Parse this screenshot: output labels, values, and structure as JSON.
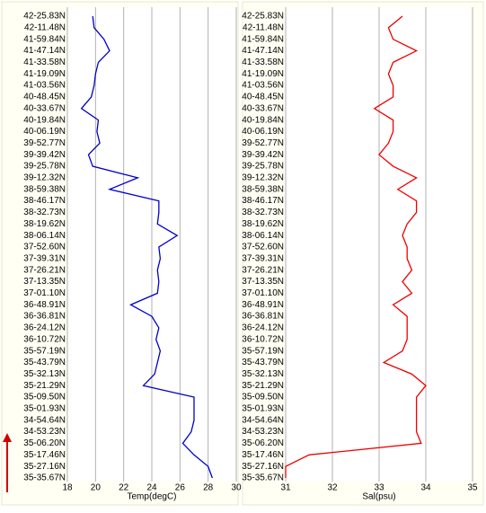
{
  "chart_data": [
    {
      "type": "line",
      "xlabel": "Temp(degC)",
      "color": "#0000cc",
      "categories": [
        "42-25.83N",
        "42-11.48N",
        "41-59.84N",
        "41-47.14N",
        "41-33.58N",
        "41-19.09N",
        "41-03.56N",
        "40-48.45N",
        "40-33.67N",
        "40-19.84N",
        "40-06.19N",
        "39-52.77N",
        "39-39.42N",
        "39-25.78N",
        "39-12.32N",
        "38-59.38N",
        "38-46.17N",
        "38-32.73N",
        "38-19.62N",
        "38-06.14N",
        "37-52.60N",
        "37-39.31N",
        "37-26.21N",
        "37-13.35N",
        "37-01.10N",
        "36-48.91N",
        "36-36.81N",
        "36-24.12N",
        "36-10.72N",
        "35-57.19N",
        "35-43.79N",
        "35-32.13N",
        "35-21.29N",
        "35-09.50N",
        "35-01.93N",
        "34-54.64N",
        "34-53.23N",
        "35-06.20N",
        "35-17.46N",
        "35-27.16N",
        "35-35.67N"
      ],
      "values": [
        19.8,
        19.9,
        20.6,
        21.0,
        20.2,
        20.0,
        19.9,
        19.7,
        19.0,
        20.2,
        20.1,
        20.3,
        19.5,
        19.8,
        23.0,
        21.0,
        24.5,
        24.5,
        24.4,
        25.8,
        24.5,
        24.6,
        24.4,
        24.5,
        24.4,
        22.5,
        24.0,
        24.5,
        24.3,
        24.6,
        24.4,
        24.2,
        23.4,
        27.0,
        27.0,
        27.0,
        26.8,
        26.2,
        27.0,
        28.0,
        28.3
      ],
      "xlim": [
        18,
        30
      ],
      "xticks": [
        18,
        20,
        22,
        24,
        26,
        28,
        30
      ],
      "grid": true
    },
    {
      "type": "line",
      "xlabel": "Sal(psu)",
      "color": "#ee0000",
      "categories": [
        "42-25.83N",
        "42-11.48N",
        "41-59.84N",
        "41-47.14N",
        "41-33.58N",
        "41-19.09N",
        "41-03.56N",
        "40-48.45N",
        "40-33.67N",
        "40-19.84N",
        "40-06.19N",
        "39-52.77N",
        "39-39.42N",
        "39-25.78N",
        "39-12.32N",
        "38-59.38N",
        "38-46.17N",
        "38-32.73N",
        "38-19.62N",
        "38-06.14N",
        "37-52.60N",
        "37-39.31N",
        "37-26.21N",
        "37-13.35N",
        "37-01.10N",
        "36-48.91N",
        "36-36.81N",
        "36-24.12N",
        "36-10.72N",
        "35-57.19N",
        "35-43.79N",
        "35-32.13N",
        "35-21.29N",
        "35-09.50N",
        "35-01.93N",
        "34-54.64N",
        "34-53.23N",
        "35-06.20N",
        "35-17.46N",
        "35-27.16N",
        "35-35.67N"
      ],
      "values": [
        33.5,
        33.2,
        33.3,
        33.8,
        33.3,
        33.2,
        33.3,
        33.3,
        32.9,
        33.3,
        33.3,
        33.2,
        33.0,
        33.3,
        33.8,
        33.4,
        33.8,
        33.8,
        33.6,
        33.5,
        33.6,
        33.6,
        33.7,
        33.5,
        33.7,
        33.3,
        33.6,
        33.6,
        33.6,
        33.5,
        33.1,
        33.7,
        34.0,
        33.8,
        33.8,
        33.8,
        33.8,
        33.9,
        31.5,
        31.0,
        31.0
      ],
      "xlim": [
        31,
        35
      ],
      "xticks": [
        31,
        32,
        33,
        34,
        35
      ],
      "grid": true
    }
  ]
}
